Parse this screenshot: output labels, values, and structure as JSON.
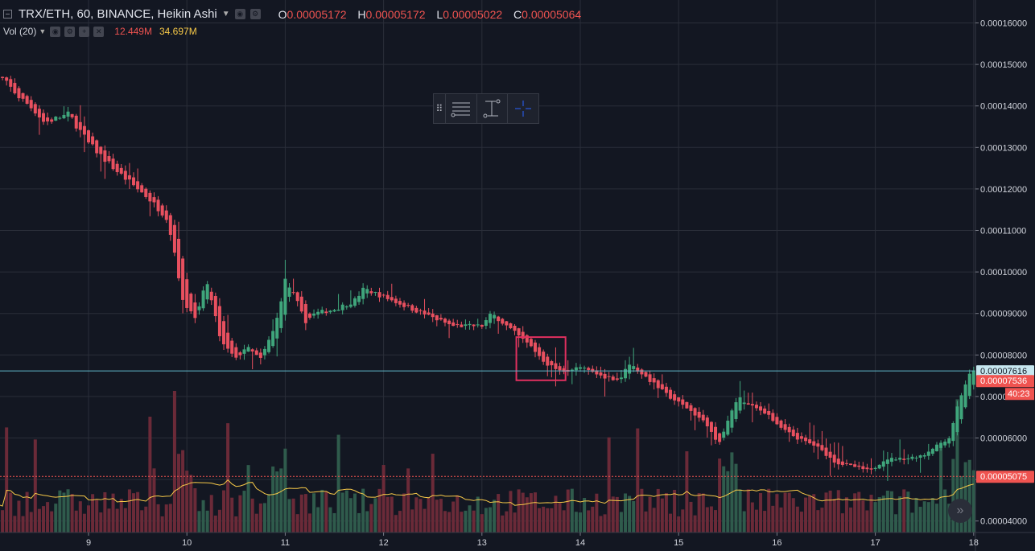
{
  "header": {
    "title": "TRX/ETH, 60, BINANCE, Heikin Ashi",
    "o_label": "O",
    "o_value": "0.00005172",
    "h_label": "H",
    "h_value": "0.00005172",
    "l_label": "L",
    "l_value": "0.00005022",
    "c_label": "C",
    "c_value": "0.00005064"
  },
  "volume_legend": {
    "label": "Vol (20)",
    "volume_value": "12.449M",
    "ma_value": "34.697M"
  },
  "colors": {
    "background": "#131722",
    "grid": "#2a2e39",
    "up": "#3fa57b",
    "down": "#e8505f",
    "vol_up": "#2f5b4c",
    "vol_down": "#6b2a38",
    "vol_ma": "#f7c948",
    "crosshair_line": "#5fb7c9",
    "highlight_box": "#e0305f",
    "last_price_bg": "#ef5350"
  },
  "chart_data": {
    "type": "candlestick",
    "style": "Heikin Ashi",
    "symbol": "TRX/ETH",
    "interval": "60",
    "exchange": "BINANCE",
    "x_tick_labels": [
      "9",
      "10",
      "11",
      "12",
      "13",
      "14",
      "15",
      "16",
      "17",
      "18"
    ],
    "y_tick_labels": [
      "0.00004000",
      "0.00005000",
      "0.00006000",
      "0.00007000",
      "0.00008000",
      "0.00009000",
      "0.00010000",
      "0.00011000",
      "0.00012000",
      "0.00013000",
      "0.00014000",
      "0.00015000",
      "0.00016000"
    ],
    "ylim": [
      3.97e-05,
      0.0001625
    ],
    "day_range": [
      8.0,
      18.0
    ],
    "grid": true,
    "price_path": [
      [
        8.1,
        0.000147
      ],
      [
        8.3,
        0.000142
      ],
      [
        8.45,
        0.000139
      ],
      [
        8.55,
        0.000136
      ],
      [
        8.8,
        0.000138
      ],
      [
        9.0,
        0.000131
      ],
      [
        9.3,
        0.000124
      ],
      [
        9.6,
        0.000118
      ],
      [
        9.8,
        0.000113
      ],
      [
        9.9,
        0.000102
      ],
      [
        9.95,
        9.3e-05
      ],
      [
        10.1,
        8.9e-05
      ],
      [
        10.2,
        9.8e-05
      ],
      [
        10.35,
        8.3e-05
      ],
      [
        10.5,
        7.9e-05
      ],
      [
        10.6,
        8.2e-05
      ],
      [
        10.75,
        7.9e-05
      ],
      [
        10.9,
        8.7e-05
      ],
      [
        11.0,
        9.8e-05
      ],
      [
        11.1,
        9.4e-05
      ],
      [
        11.2,
        8.8e-05
      ],
      [
        11.3,
        9e-05
      ],
      [
        11.5,
        9.1e-05
      ],
      [
        11.7,
        9.3e-05
      ],
      [
        11.8,
        9.6e-05
      ],
      [
        12.0,
        9.4e-05
      ],
      [
        12.3,
        9.1e-05
      ],
      [
        12.5,
        8.9e-05
      ],
      [
        12.7,
        8.7e-05
      ],
      [
        13.0,
        8.7e-05
      ],
      [
        13.1,
        9e-05
      ],
      [
        13.3,
        8.6e-05
      ],
      [
        13.5,
        8.2e-05
      ],
      [
        13.65,
        7.8e-05
      ],
      [
        13.8,
        7.6e-05
      ],
      [
        14.0,
        7.7e-05
      ],
      [
        14.2,
        7.5e-05
      ],
      [
        14.4,
        7.4e-05
      ],
      [
        14.5,
        7.8e-05
      ],
      [
        14.7,
        7.4e-05
      ],
      [
        14.9,
        7e-05
      ],
      [
        15.1,
        6.7e-05
      ],
      [
        15.3,
        6.3e-05
      ],
      [
        15.4,
        5.8e-05
      ],
      [
        15.5,
        6.4e-05
      ],
      [
        15.6,
        7e-05
      ],
      [
        15.7,
        6.8e-05
      ],
      [
        15.9,
        6.6e-05
      ],
      [
        16.0,
        6.3e-05
      ],
      [
        16.2,
        6e-05
      ],
      [
        16.4,
        5.8e-05
      ],
      [
        16.6,
        5.4e-05
      ],
      [
        16.8,
        5.3e-05
      ],
      [
        16.95,
        5.2e-05
      ],
      [
        17.1,
        5.5e-05
      ],
      [
        17.3,
        5.5e-05
      ],
      [
        17.5,
        5.6e-05
      ],
      [
        17.6,
        5.8e-05
      ],
      [
        17.75,
        6e-05
      ],
      [
        17.85,
        6.9e-05
      ],
      [
        17.95,
        7.5e-05
      ],
      [
        18.0,
        7.6e-05
      ]
    ],
    "price_lines": [
      {
        "label": "0.00007616",
        "value": 7.616e-05
      },
      {
        "label": "0.00007536",
        "value": 7.536e-05
      },
      {
        "label": "0.00005075",
        "value": 5.075e-05
      }
    ],
    "countdown_label": "40:23",
    "highlight_range": {
      "days": [
        13.35,
        13.85
      ],
      "prices": [
        7.39e-05,
        8.43e-05
      ]
    }
  },
  "toolbar": {
    "tools": [
      {
        "name": "horizontal-lines-tool"
      },
      {
        "name": "price-range-tool"
      },
      {
        "name": "crosshair-tool"
      }
    ],
    "scroll_label": "»"
  }
}
